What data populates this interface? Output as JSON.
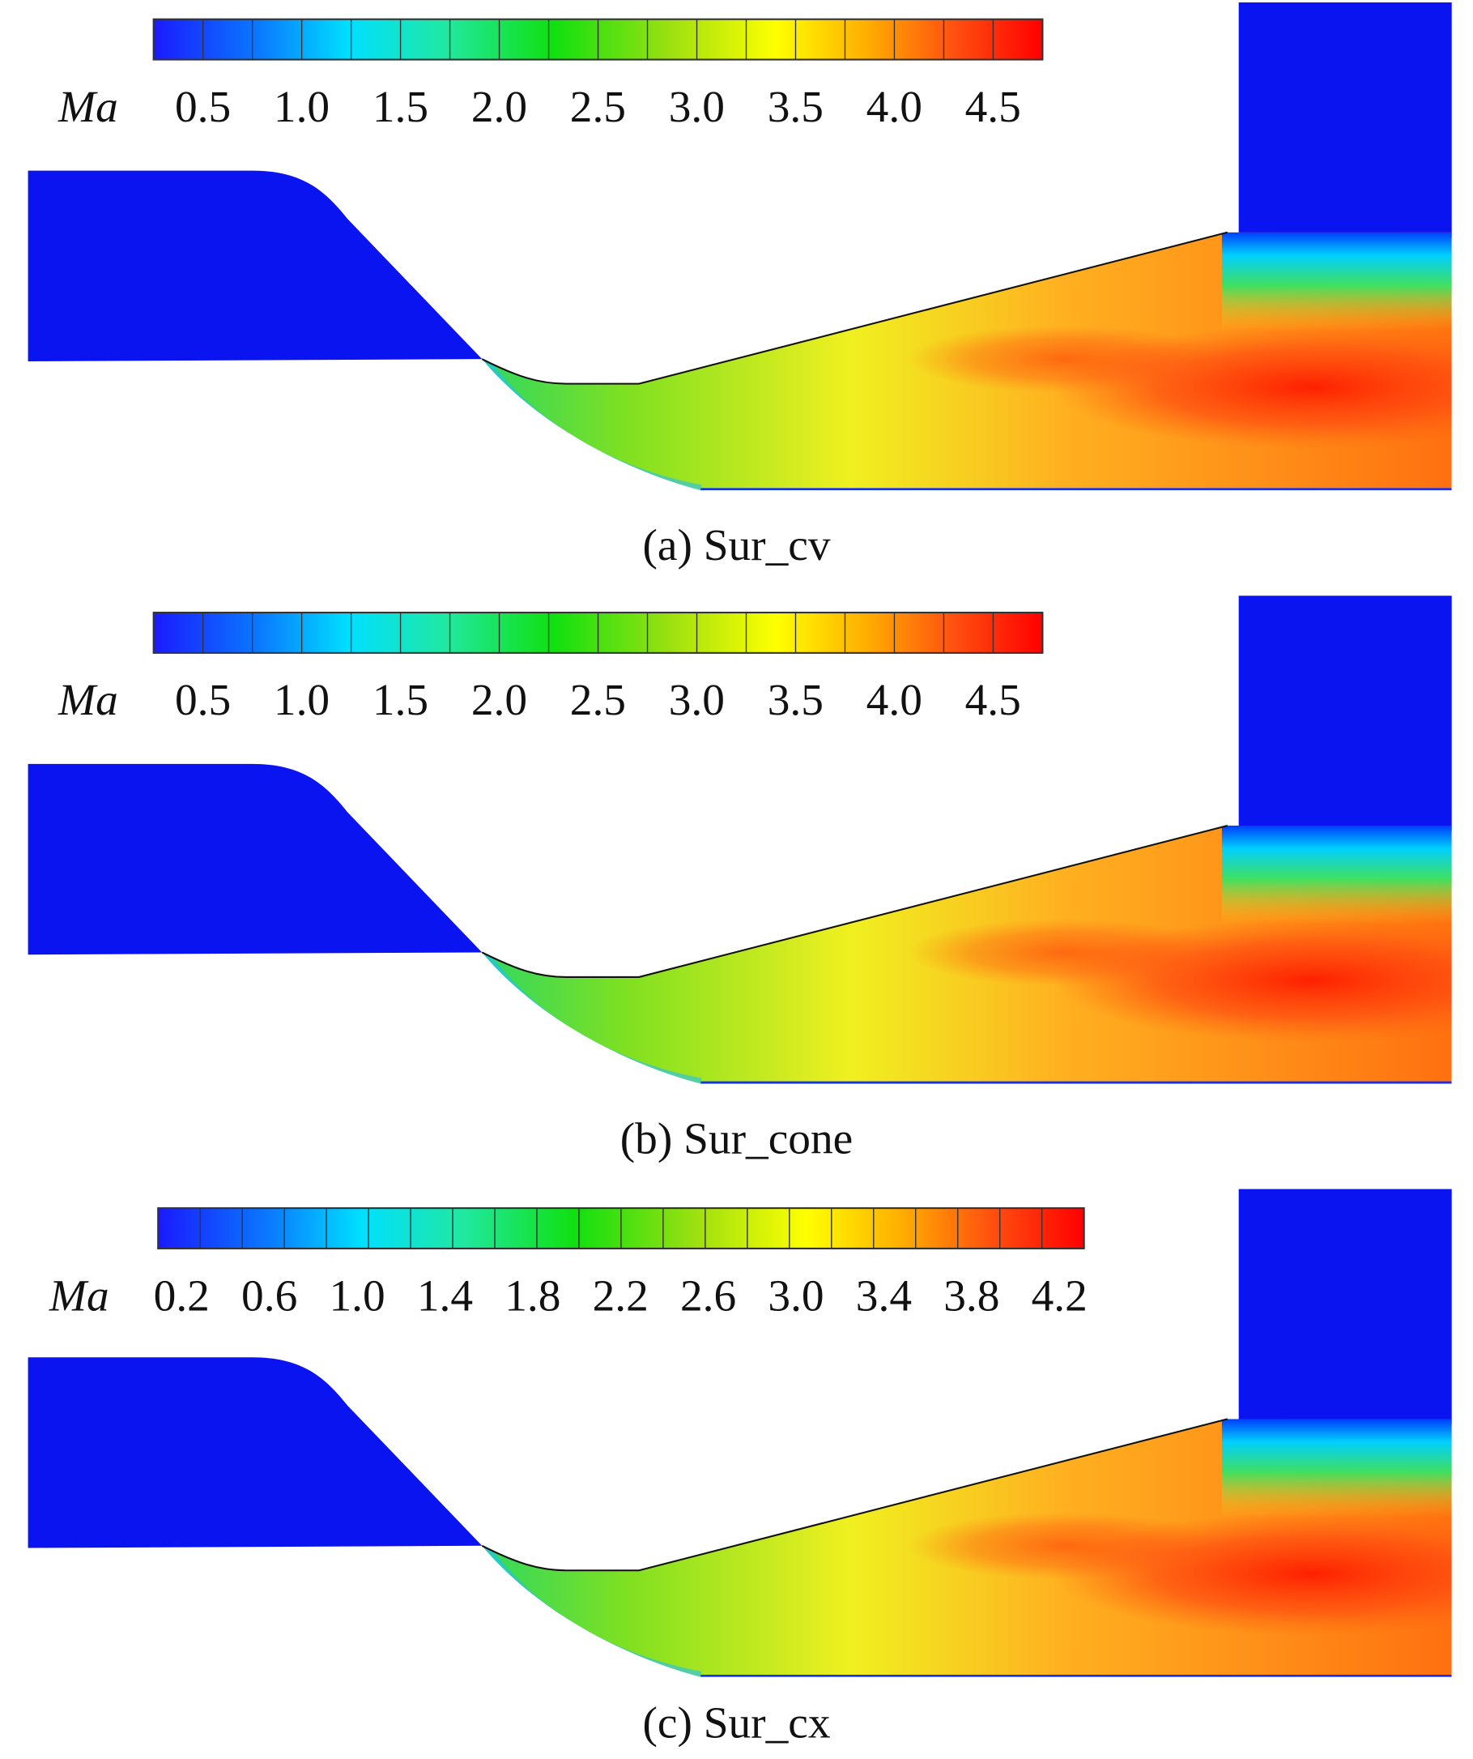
{
  "panels": [
    {
      "colorbar": {
        "label": "Ma",
        "ticks": [
          "0.5",
          "1.0",
          "1.5",
          "2.0",
          "2.5",
          "3.0",
          "3.5",
          "4.0",
          "4.5"
        ]
      },
      "caption": "(a) Sur_cv"
    },
    {
      "colorbar": {
        "label": "Ma",
        "ticks": [
          "0.5",
          "1.0",
          "1.5",
          "2.0",
          "2.5",
          "3.0",
          "3.5",
          "4.0",
          "4.5"
        ]
      },
      "caption": "(b) Sur_cone"
    },
    {
      "colorbar": {
        "label": "Ma",
        "ticks": [
          "0.2",
          "0.6",
          "1.0",
          "1.4",
          "1.8",
          "2.2",
          "2.6",
          "3.0",
          "3.4",
          "3.8",
          "4.2"
        ]
      },
      "caption": "(c) Sur_cx"
    }
  ]
}
